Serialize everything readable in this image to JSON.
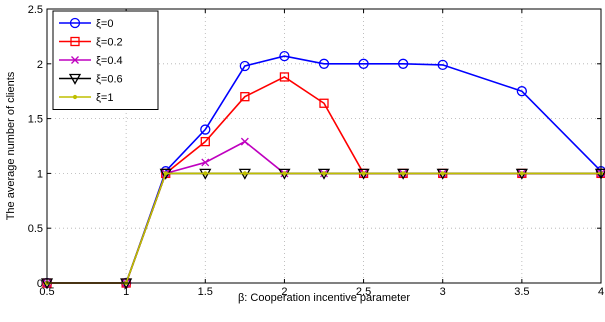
{
  "chart_data": {
    "type": "line",
    "title": "",
    "xlabel": "β: Cooperation incentive parameter",
    "ylabel": "The average number of clients",
    "xlim": [
      0.5,
      4
    ],
    "ylim": [
      0,
      2.5
    ],
    "xticks": [
      0.5,
      1,
      1.5,
      2,
      2.5,
      3,
      3.5,
      4
    ],
    "xtick_labels": [
      "0.5",
      "1",
      "1.5",
      "2",
      "2.5",
      "3",
      "3.5",
      "4"
    ],
    "yticks": [
      0,
      0.5,
      1,
      1.5,
      2,
      2.5
    ],
    "ytick_labels": [
      "0",
      "0.5",
      "1",
      "1.5",
      "2",
      "2.5"
    ],
    "grid": true,
    "legend_position": "top-left",
    "series": [
      {
        "name": "ξ=0",
        "color": "#0000ff",
        "marker": "circle",
        "x": [
          0.5,
          1,
          1.25,
          1.5,
          1.75,
          2,
          2.25,
          2.5,
          2.75,
          3,
          3.5,
          4
        ],
        "y": [
          0,
          0,
          1.02,
          1.4,
          1.98,
          2.07,
          2.0,
          2.0,
          2.0,
          1.99,
          1.75,
          1.02
        ]
      },
      {
        "name": "ξ=0.2",
        "color": "#ff0000",
        "marker": "square",
        "x": [
          0.5,
          1,
          1.25,
          1.5,
          1.75,
          2,
          2.25,
          2.5,
          2.75,
          3,
          3.5,
          4
        ],
        "y": [
          0,
          0,
          1.0,
          1.29,
          1.7,
          1.88,
          1.64,
          1.0,
          1.0,
          1.0,
          1.0,
          1.0
        ]
      },
      {
        "name": "ξ=0.4",
        "color": "#bf00bf",
        "marker": "x",
        "x": [
          0.5,
          1,
          1.25,
          1.5,
          1.75,
          2,
          2.25,
          2.5,
          2.75,
          3,
          3.5,
          4
        ],
        "y": [
          0,
          0,
          1.0,
          1.1,
          1.29,
          1.0,
          1.0,
          1.0,
          1.0,
          1.0,
          1.0,
          1.0
        ]
      },
      {
        "name": "ξ=0.6",
        "color": "#000000",
        "marker": "triangle-down",
        "x": [
          0.5,
          1,
          1.25,
          1.5,
          1.75,
          2,
          2.25,
          2.5,
          2.75,
          3,
          3.5,
          4
        ],
        "y": [
          0,
          0,
          1.0,
          1.0,
          1.0,
          1.0,
          1.0,
          1.0,
          1.0,
          1.0,
          1.0,
          1.0
        ]
      },
      {
        "name": "ξ=1",
        "color": "#bfbf00",
        "marker": "dot",
        "x": [
          0.5,
          1,
          1.25,
          1.5,
          1.75,
          2,
          2.25,
          2.5,
          2.75,
          3,
          3.5,
          4
        ],
        "y": [
          0,
          0,
          1.0,
          1.0,
          1.0,
          1.0,
          1.0,
          1.0,
          1.0,
          1.0,
          1.0,
          1.0
        ]
      }
    ]
  }
}
